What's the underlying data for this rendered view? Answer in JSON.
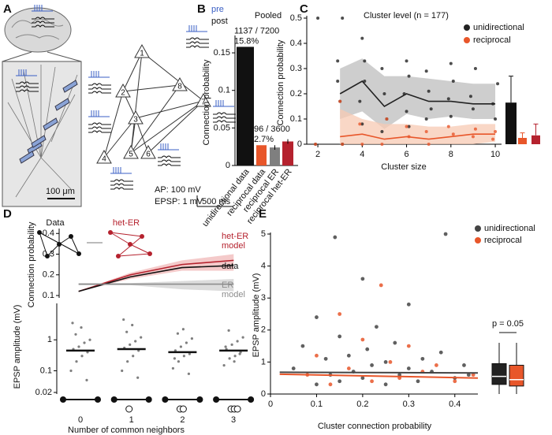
{
  "chart_data": [
    {
      "type": "diagram",
      "label": "A",
      "nodes": [
        "1",
        "2",
        "3",
        "4",
        "5",
        "6",
        "7",
        "8"
      ],
      "trace_labels": [
        "pre",
        "post"
      ],
      "scale_labels": [
        "AP: 100 mV",
        "EPSP: 1 mV",
        "500 ms"
      ],
      "scale_bar": "100 μm"
    },
    {
      "type": "bar",
      "label": "B",
      "title": "Pooled",
      "ylabel": "Connection probability",
      "categories": [
        "unidirectional data",
        "reciprocal data",
        "reciprocal ER",
        "reciprocal het-ER"
      ],
      "values": [
        0.158,
        0.027,
        0.024,
        0.032
      ],
      "errors": [
        null,
        null,
        0.003,
        0.003
      ],
      "value_labels": [
        "15.8%",
        "2.7%",
        null,
        null
      ],
      "count_labels": [
        "1137 / 7200",
        "96 / 3600",
        null,
        null
      ],
      "colors": [
        "#111111",
        "#e8562a",
        "#7f7f7f",
        "#b5222e"
      ],
      "ylim": [
        0,
        0.17
      ],
      "yticks": [
        0,
        0.05,
        0.1,
        0.15
      ]
    },
    {
      "type": "line",
      "label": "C",
      "title": "Cluster level (n = 177)",
      "xlabel": "Cluster size",
      "ylabel": "Connection probability",
      "x": [
        3,
        4,
        5,
        6,
        7,
        8,
        9,
        10
      ],
      "xlim": [
        1.5,
        10.3
      ],
      "xticks": [
        2,
        4,
        6,
        8,
        10
      ],
      "ylim": [
        0,
        0.5
      ],
      "yticks": [
        0,
        0.1,
        0.2,
        0.3,
        0.4,
        0.5
      ],
      "series": [
        {
          "name": "unidirectional",
          "color": "#222222",
          "band_color": "#bdbdbd",
          "values": [
            0.2,
            0.25,
            0.15,
            0.2,
            0.17,
            0.17,
            0.16,
            0.16
          ],
          "lower": [
            0.1,
            0.13,
            0.06,
            0.12,
            0.1,
            0.11,
            0.1,
            0.1
          ],
          "upper": [
            0.3,
            0.34,
            0.27,
            0.27,
            0.26,
            0.25,
            0.24,
            0.24
          ],
          "scatter_x": [
            2,
            2,
            3,
            3,
            3,
            3,
            3,
            4,
            4,
            4,
            4,
            4,
            5,
            5,
            5,
            5,
            6,
            6,
            6,
            6,
            6,
            7,
            7,
            7,
            7,
            8,
            8,
            8,
            8,
            9,
            9,
            9,
            10,
            10,
            10
          ],
          "scatter_y": [
            0,
            0.5,
            0.5,
            0.33,
            0.17,
            0,
            0.25,
            0.42,
            0.33,
            0.17,
            0.08,
            0.25,
            0.3,
            0.2,
            0.1,
            0.05,
            0.33,
            0.27,
            0.2,
            0.13,
            0.07,
            0.29,
            0.21,
            0.14,
            0.1,
            0.32,
            0.25,
            0.18,
            0.11,
            0.3,
            0.19,
            0.14,
            0.24,
            0.16,
            0.1
          ]
        },
        {
          "name": "reciprocal",
          "color": "#e8562a",
          "band_color": "#f7c9b3",
          "values": [
            0.03,
            0.04,
            0.02,
            0.03,
            0.02,
            0.03,
            0.04,
            0.04
          ],
          "lower": [
            0,
            0,
            0,
            0,
            0,
            0,
            0,
            0.01
          ],
          "upper": [
            0.14,
            0.1,
            0.08,
            0.08,
            0.07,
            0.07,
            0.08,
            0.08
          ],
          "scatter_x": [
            2,
            3,
            3,
            4,
            4,
            5,
            5,
            6,
            6,
            7,
            7,
            8,
            8,
            9,
            9,
            10,
            10
          ],
          "scatter_y": [
            0,
            0.17,
            0,
            0.08,
            0,
            0.1,
            0,
            0.07,
            0.03,
            0.05,
            0,
            0.04,
            0.07,
            0.03,
            0.06,
            0.02,
            0.05
          ]
        }
      ],
      "summary": {
        "values": [
          0.165,
          0.025,
          0.035
        ],
        "errors": [
          0.105,
          0.02,
          0.045
        ],
        "colors": [
          "#111111",
          "#e8562a",
          "#b5222e"
        ]
      }
    },
    {
      "type": "line",
      "label": "D",
      "ylabel": "Connection probability",
      "illustration_labels": [
        "Data",
        "het-ER"
      ],
      "x": [
        0,
        1,
        2,
        3
      ],
      "xlim": [
        -0.3,
        3.3
      ],
      "ylim": [
        0.1,
        0.42
      ],
      "yticks": [
        0.1,
        0.2,
        0.3,
        0.4
      ],
      "series": [
        {
          "name": "het-ER model",
          "color": "#b5222e",
          "band_color": "#f0b8b8",
          "values": [
            0.12,
            0.2,
            0.25,
            0.27
          ],
          "lower": [
            0.12,
            0.18,
            0.22,
            0.22
          ],
          "upper": [
            0.12,
            0.21,
            0.27,
            0.3
          ]
        },
        {
          "name": "data",
          "color": "#111111",
          "values": [
            0.12,
            0.19,
            0.235,
            0.245
          ]
        },
        {
          "name": "ER model",
          "color": "#8c8c8c",
          "band_color": "#d0d0d0",
          "values": [
            0.155,
            0.155,
            0.155,
            0.155
          ],
          "lower": [
            0.15,
            0.15,
            0.13,
            0.12
          ],
          "upper": [
            0.16,
            0.16,
            0.17,
            0.18
          ]
        }
      ]
    },
    {
      "type": "strip",
      "xlabel": "Number of common neighbors",
      "ylabel": "EPSP amplitude (mV)",
      "categories": [
        "0",
        "1",
        "2",
        "3"
      ],
      "log_y": true,
      "ylim": [
        0.02,
        15
      ],
      "yticks": [
        0.02,
        0.1,
        1
      ],
      "points": [
        [
          0.1,
          0.2,
          0.3,
          0.4,
          0.5,
          0.6,
          0.8,
          1.0,
          1.5,
          2.5,
          0.05,
          3.5
        ],
        [
          0.1,
          0.2,
          0.3,
          0.45,
          0.55,
          0.7,
          0.9,
          1.2,
          1.8,
          3,
          0.06,
          4.5
        ],
        [
          0.12,
          0.2,
          0.3,
          0.35,
          0.45,
          0.6,
          0.8,
          1.1,
          1.6,
          2.2,
          0.08,
          0.25
        ],
        [
          0.15,
          0.25,
          0.3,
          0.4,
          0.5,
          0.7,
          0.9,
          1.2,
          2,
          0.2,
          0.35,
          0.6
        ]
      ],
      "medians": [
        0.45,
        0.5,
        0.4,
        0.45
      ],
      "color": "#7f7f7f"
    },
    {
      "type": "scatter",
      "label": "E",
      "xlabel": "Cluster connection probability",
      "ylabel": "EPSP amplitude (mV)",
      "annotation": "p = 0.05",
      "xlim": [
        0,
        0.45
      ],
      "xticks": [
        0,
        0.1,
        0.2,
        0.3,
        0.4
      ],
      "ylim": [
        0,
        5
      ],
      "yticks": [
        0,
        1,
        2,
        3,
        4,
        5
      ],
      "series": [
        {
          "name": "unidirectional",
          "color": "#444444",
          "x": [
            0.05,
            0.07,
            0.1,
            0.1,
            0.12,
            0.13,
            0.14,
            0.15,
            0.15,
            0.17,
            0.18,
            0.2,
            0.2,
            0.21,
            0.22,
            0.23,
            0.25,
            0.25,
            0.27,
            0.28,
            0.3,
            0.3,
            0.32,
            0.33,
            0.35,
            0.37,
            0.38,
            0.4,
            0.42,
            0.43
          ],
          "values": [
            0.8,
            1.5,
            0.3,
            2.4,
            1.1,
            0.6,
            4.9,
            1.8,
            0.4,
            1.2,
            0.7,
            3.6,
            0.5,
            1.4,
            0.9,
            2.1,
            0.3,
            1.0,
            1.6,
            0.6,
            0.8,
            2.8,
            0.4,
            1.1,
            0.7,
            1.3,
            5.0,
            0.5,
            0.9,
            0.6
          ],
          "fit_x": [
            0.02,
            0.45
          ],
          "fit": [
            0.68,
            0.66
          ],
          "box": [
            0.3,
            0.55,
            0.95,
            0,
            1.6
          ],
          "box_color": "#222222"
        },
        {
          "name": "reciprocal",
          "color": "#e8562a",
          "x": [
            0.08,
            0.1,
            0.13,
            0.15,
            0.17,
            0.2,
            0.22,
            0.24,
            0.26,
            0.28,
            0.3,
            0.33,
            0.36,
            0.4,
            0.44
          ],
          "values": [
            0.6,
            1.2,
            0.3,
            2.5,
            0.8,
            1.7,
            0.4,
            3.4,
            1.0,
            0.5,
            1.5,
            0.7,
            0.9,
            0.4,
            0.6
          ],
          "fit_x": [
            0.02,
            0.45
          ],
          "fit": [
            0.62,
            0.5
          ],
          "box": [
            0.25,
            0.45,
            0.9,
            0,
            1.6
          ],
          "box_color": "#e8562a"
        }
      ]
    }
  ]
}
